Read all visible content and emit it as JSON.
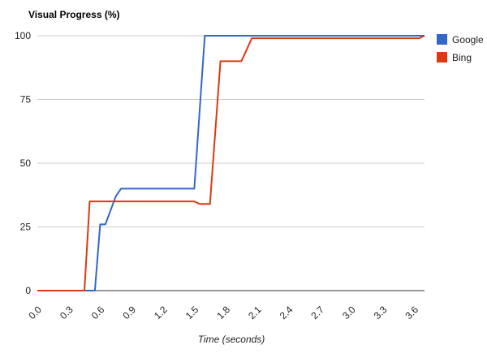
{
  "chart_data": {
    "type": "line",
    "title": "Visual Progress (%)",
    "xlabel": "Time (seconds)",
    "ylabel": "",
    "xlim": [
      0.0,
      3.7
    ],
    "ylim": [
      0,
      100
    ],
    "x_ticks": [
      "0.0",
      "0.3",
      "0.6",
      "0.9",
      "1.2",
      "1.5",
      "1.8",
      "2.1",
      "2.4",
      "2.7",
      "3.0",
      "3.3",
      "3.6"
    ],
    "x_tick_values": [
      0.0,
      0.3,
      0.6,
      0.9,
      1.2,
      1.5,
      1.8,
      2.1,
      2.4,
      2.7,
      3.0,
      3.3,
      3.6
    ],
    "y_ticks": [
      "0",
      "25",
      "50",
      "75",
      "100"
    ],
    "y_tick_values": [
      0,
      25,
      50,
      75,
      100
    ],
    "grid": true,
    "legend_position": "right",
    "series": [
      {
        "name": "Google",
        "color": "#3366cc",
        "x": [
          0.0,
          0.55,
          0.6,
          0.65,
          0.75,
          0.8,
          1.5,
          1.6,
          3.7
        ],
        "y": [
          0,
          0,
          26,
          26,
          37,
          40,
          40,
          100,
          100
        ]
      },
      {
        "name": "Bing",
        "color": "#dc3912",
        "x": [
          0.0,
          0.45,
          0.5,
          1.5,
          1.55,
          1.65,
          1.75,
          1.85,
          1.95,
          2.05,
          3.65,
          3.7
        ],
        "y": [
          0,
          0,
          35,
          35,
          34,
          34,
          90,
          90,
          90,
          99,
          99,
          100
        ]
      }
    ]
  }
}
